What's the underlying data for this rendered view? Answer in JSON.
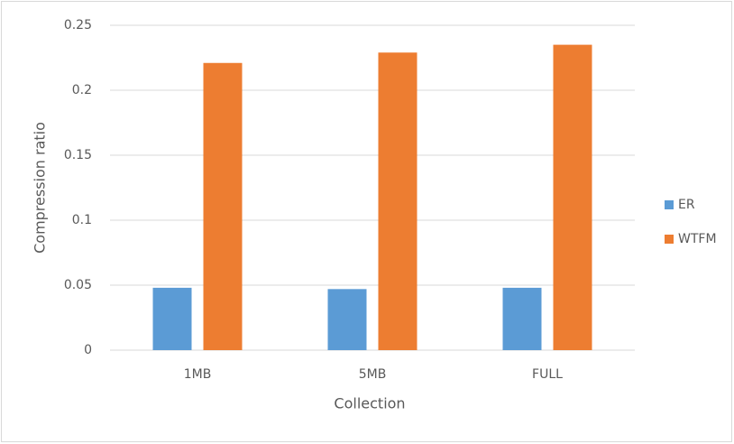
{
  "chart_data": {
    "type": "bar",
    "x_label": "Collection",
    "y_label": "Compression ratio",
    "categories": [
      "1MB",
      "5MB",
      "FULL"
    ],
    "series": [
      {
        "name": "ER",
        "color": "#5b9bd5",
        "values": [
          0.048,
          0.047,
          0.048
        ]
      },
      {
        "name": "WTFM",
        "color": "#ed7d31",
        "values": [
          0.221,
          0.229,
          0.235
        ]
      }
    ],
    "ylim": [
      0,
      0.25
    ],
    "yticks": [
      0,
      0.05,
      0.1,
      0.15,
      0.2,
      0.25
    ],
    "grid": true,
    "legend": "right"
  }
}
